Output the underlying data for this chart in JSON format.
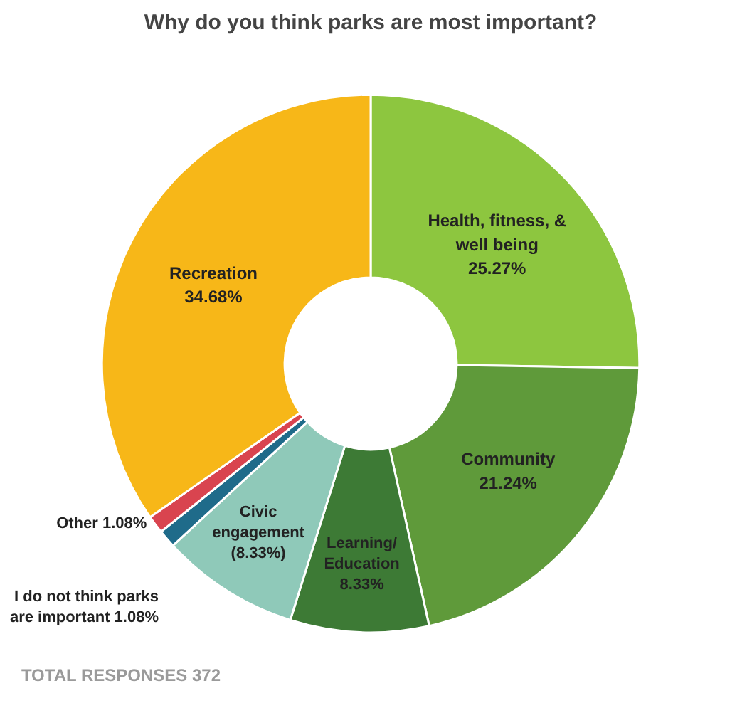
{
  "chart_data": {
    "type": "donut",
    "title": "Why do you think parks are most important?",
    "categories": [
      "Health, fitness, & well being",
      "Community",
      "Learning/Education",
      "Civic engagement",
      "I do not think parks are important",
      "Other",
      "Recreation"
    ],
    "values": [
      25.27,
      21.24,
      8.33,
      8.33,
      1.08,
      1.08,
      34.68
    ],
    "value_labels": [
      "25.27%",
      "21.24%",
      "8.33%",
      "(8.33%)",
      "1.08%",
      "1.08%",
      "34.68%"
    ],
    "colors": [
      "#8dc63f",
      "#5f9a3a",
      "#3d7a35",
      "#8fc9b9",
      "#1f6b8a",
      "#d9444f",
      "#f7b718"
    ],
    "annotations": [
      "TOTAL RESPONSES 372"
    ]
  }
}
